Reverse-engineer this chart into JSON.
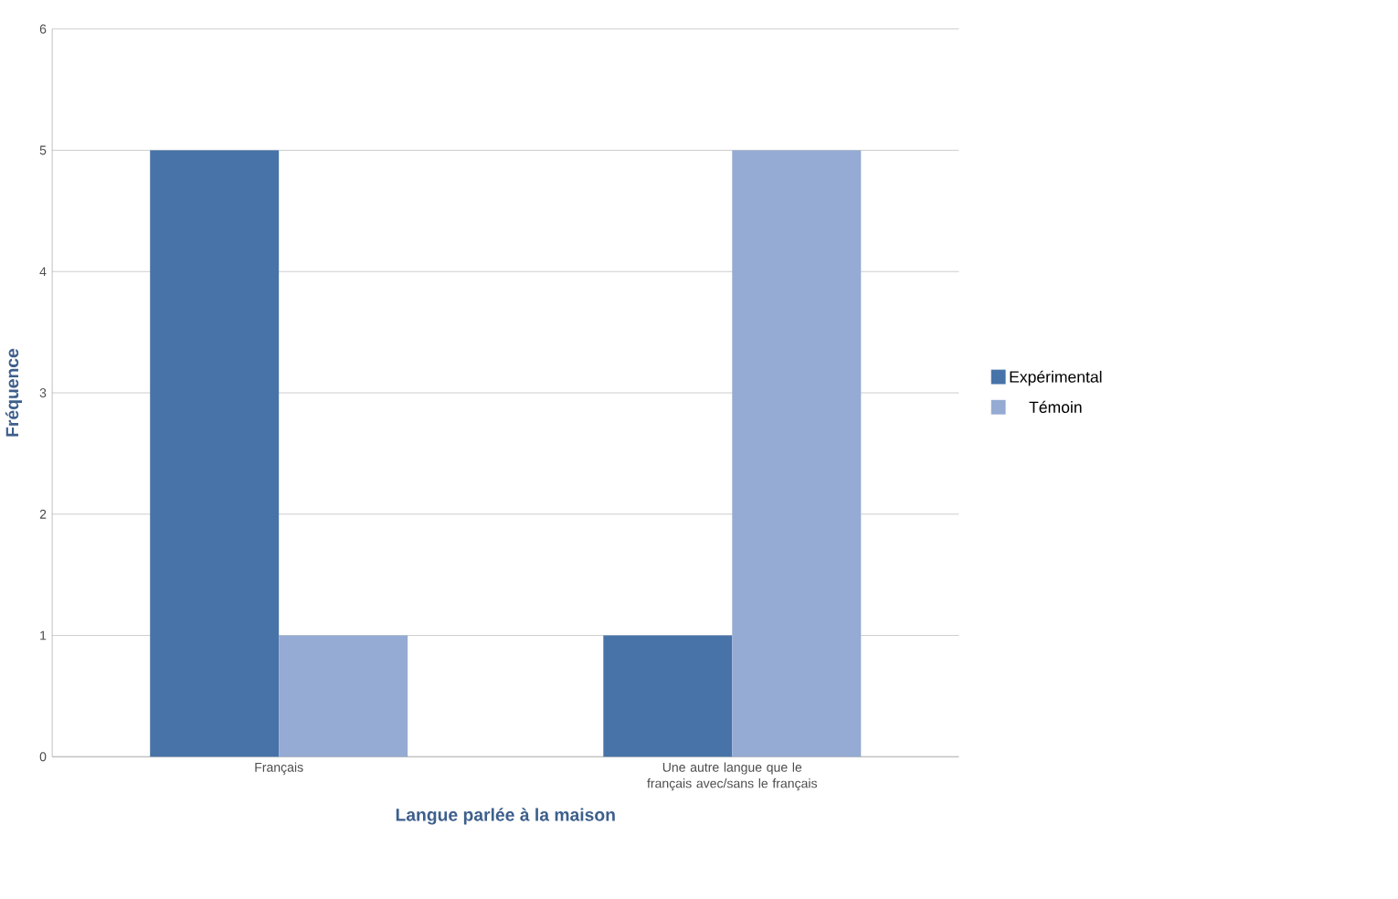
{
  "chart_data": {
    "type": "bar",
    "xlabel": "Langue parlée à la maison",
    "ylabel": "Fréquence",
    "categories": [
      "Français",
      "Une autre langue que le français avec/sans le français"
    ],
    "series": [
      {
        "name": "Expérimental",
        "color": "#4773a8",
        "values": [
          5,
          1
        ]
      },
      {
        "name": "Témoin",
        "color": "#95abd3",
        "values": [
          1,
          5
        ]
      }
    ],
    "ylim": [
      0,
      6
    ],
    "yticks": [
      0,
      1,
      2,
      3,
      4,
      5,
      6
    ],
    "grid": "y",
    "legend": "right"
  }
}
